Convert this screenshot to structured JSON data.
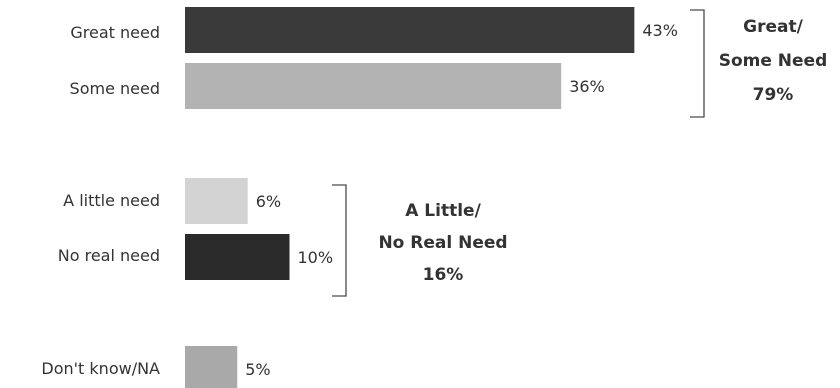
{
  "chart_data": {
    "type": "bar",
    "orientation": "horizontal",
    "categories": [
      "Great need",
      "Some need",
      "A little need",
      "No real need",
      "Don't know/NA"
    ],
    "values": [
      43,
      36,
      6,
      10,
      5
    ],
    "value_labels": [
      "43%",
      "36%",
      "6%",
      "10%",
      "5%"
    ],
    "bar_colors": [
      "#3a3a3a",
      "#b3b3b3",
      "#d3d3d3",
      "#2a2a2a",
      "#a9a9a9"
    ],
    "unit": "%",
    "grid": false,
    "legend": "none",
    "groups": [
      {
        "label_lines": [
          "Great/",
          "Some Need",
          "79%"
        ],
        "members": [
          "Great need",
          "Some need"
        ],
        "total": 79
      },
      {
        "label_lines": [
          "A Little/",
          "No Real Need",
          "16%"
        ],
        "members": [
          "A little need",
          "No real need"
        ],
        "total": 16
      }
    ]
  }
}
